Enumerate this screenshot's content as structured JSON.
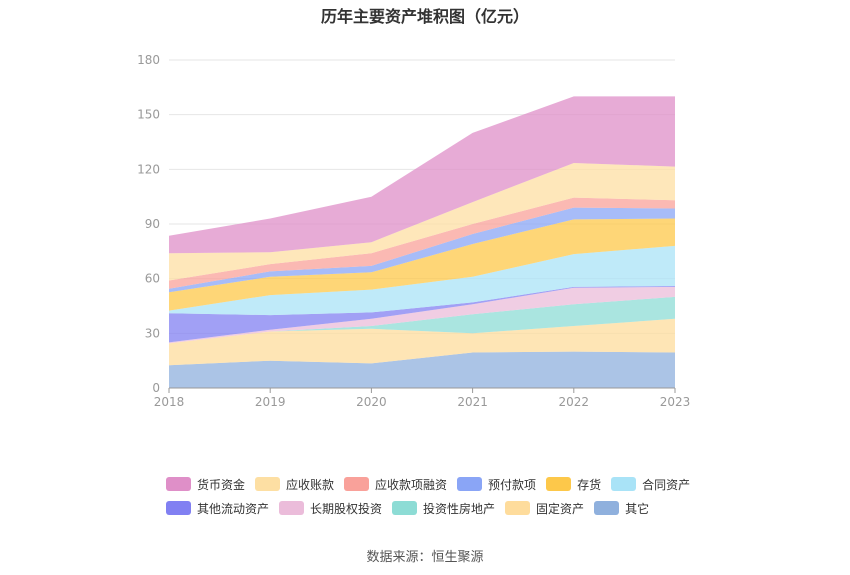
{
  "chart_data": {
    "type": "area",
    "stacked": true,
    "title": "历年主要资产堆积图（亿元）",
    "x": [
      "2018",
      "2019",
      "2020",
      "2021",
      "2022",
      "2023"
    ],
    "yticks": [
      "0",
      "30",
      "60",
      "90",
      "120",
      "150",
      "180"
    ],
    "ylim": [
      0,
      180
    ],
    "grid": true,
    "legend_position": "bottom",
    "series": [
      {
        "name": "其它",
        "color": "#8fb0dd",
        "values": [
          12.5,
          15,
          13.5,
          19.5,
          20,
          19.5
        ]
      },
      {
        "name": "固定资产",
        "color": "#fedc9c",
        "values": [
          12,
          16,
          19,
          10.5,
          14,
          18.5
        ]
      },
      {
        "name": "投资性房地产",
        "color": "#8ddcd5",
        "values": [
          0,
          0,
          1.5,
          10.5,
          12,
          12
        ]
      },
      {
        "name": "长期股权投资",
        "color": "#ebbcda",
        "values": [
          0.5,
          1,
          4,
          5.5,
          9,
          5.5
        ]
      },
      {
        "name": "其他流动资产",
        "color": "#8180f2",
        "values": [
          16,
          8,
          3.5,
          1,
          0.5,
          0.5
        ]
      },
      {
        "name": "合同资产",
        "color": "#a9e3f7",
        "values": [
          1.5,
          11,
          12.5,
          14,
          18,
          22
        ]
      },
      {
        "name": "存货",
        "color": "#fdc84a",
        "values": [
          10,
          10,
          9.5,
          18,
          19,
          15
        ]
      },
      {
        "name": "预付款项",
        "color": "#8aa5f6",
        "values": [
          2,
          3,
          3.5,
          5.5,
          6.5,
          5.5
        ]
      },
      {
        "name": "应收款项融资",
        "color": "#f9a19a",
        "values": [
          4.5,
          4,
          7,
          5.5,
          5.5,
          4.5
        ]
      },
      {
        "name": "应收账款",
        "color": "#fddfa3",
        "values": [
          15,
          6.5,
          6,
          12,
          19,
          18.5
        ]
      },
      {
        "name": "货币资金",
        "color": "#df8fc8",
        "values": [
          9.5,
          18.5,
          25,
          38,
          36.5,
          38.5
        ]
      }
    ],
    "legend_order": [
      "货币资金",
      "应收账款",
      "应收款项融资",
      "预付款项",
      "存货",
      "合同资产",
      "其他流动资产",
      "长期股权投资",
      "投资性房地产",
      "固定资产",
      "其它"
    ]
  },
  "source_text": "数据来源：恒生聚源"
}
